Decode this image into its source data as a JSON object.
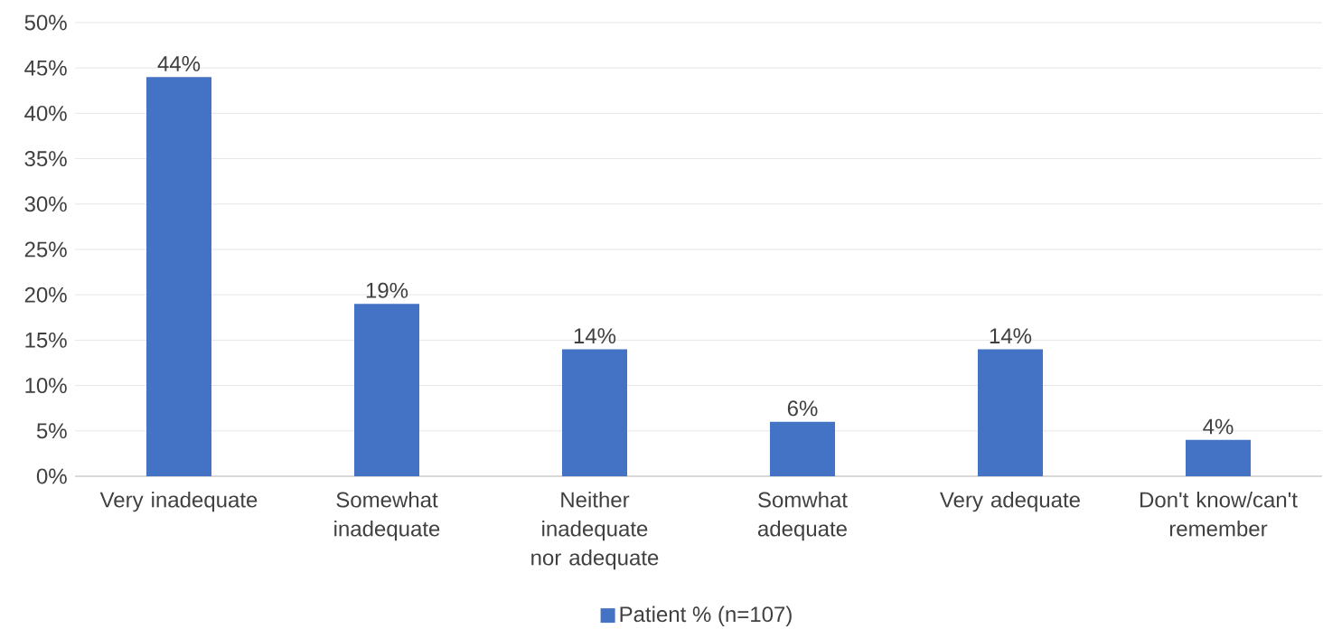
{
  "chart_data": {
    "type": "bar",
    "categories": [
      "Very inadequate",
      "Somewhat inadequate",
      "Neither inadequate nor adequate",
      "Somwhat adequate",
      "Very adequate",
      "Don't know/can't remember"
    ],
    "series": [
      {
        "name": "Patient % (n=107)",
        "color": "#4472c4",
        "values": [
          44,
          19,
          14,
          6,
          14,
          4
        ],
        "value_labels": [
          "44%",
          "19%",
          "14%",
          "6%",
          "14%",
          "4%"
        ]
      }
    ],
    "ylim": [
      0,
      50
    ],
    "yticks": [
      {
        "value": 0,
        "label": "0%"
      },
      {
        "value": 5,
        "label": "5%"
      },
      {
        "value": 10,
        "label": "10%"
      },
      {
        "value": 15,
        "label": "15%"
      },
      {
        "value": 20,
        "label": "20%"
      },
      {
        "value": 25,
        "label": "25%"
      },
      {
        "value": 30,
        "label": "30%"
      },
      {
        "value": 35,
        "label": "35%"
      },
      {
        "value": 40,
        "label": "40%"
      },
      {
        "value": 45,
        "label": "45%"
      },
      {
        "value": 50,
        "label": "50%"
      }
    ],
    "grid": "y",
    "legend": "bottom"
  }
}
